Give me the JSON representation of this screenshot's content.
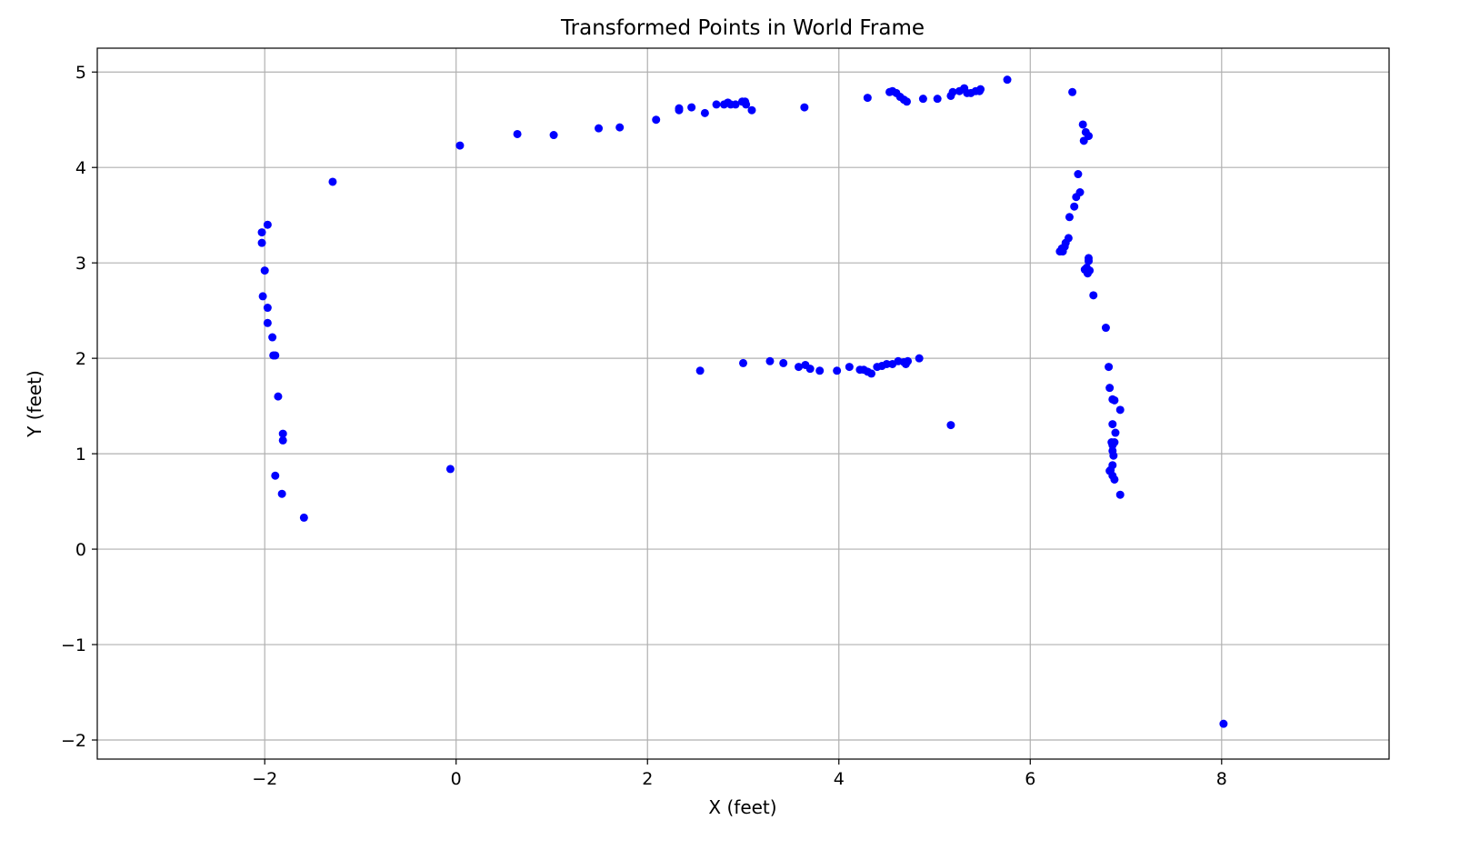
{
  "chart_data": {
    "type": "scatter",
    "title": "Transformed Points in World Frame",
    "xlabel": "X (feet)",
    "ylabel": "Y (feet)",
    "xlim": [
      -3.75,
      9.75
    ],
    "ylim": [
      -2.2,
      5.25
    ],
    "xticks": [
      -2,
      0,
      2,
      4,
      6,
      8
    ],
    "yticks": [
      -2,
      -1,
      0,
      1,
      2,
      3,
      4,
      5
    ],
    "xtick_labels": [
      "−2",
      "0",
      "2",
      "4",
      "6",
      "8"
    ],
    "ytick_labels": [
      "−2",
      "−1",
      "0",
      "1",
      "2",
      "3",
      "4",
      "5"
    ],
    "grid": true,
    "marker_color": "#0000ff",
    "points": [
      [
        -2.03,
        3.32
      ],
      [
        -2.03,
        3.21
      ],
      [
        -1.97,
        3.4
      ],
      [
        -2.0,
        2.92
      ],
      [
        -2.02,
        2.65
      ],
      [
        -1.97,
        2.53
      ],
      [
        -1.97,
        2.37
      ],
      [
        -1.92,
        2.22
      ],
      [
        -1.91,
        2.03
      ],
      [
        -1.89,
        2.03
      ],
      [
        -1.86,
        1.6
      ],
      [
        -1.81,
        1.21
      ],
      [
        -1.81,
        1.14
      ],
      [
        -1.89,
        0.77
      ],
      [
        -1.82,
        0.58
      ],
      [
        -1.59,
        0.33
      ],
      [
        -1.29,
        3.85
      ],
      [
        -0.06,
        0.84
      ],
      [
        0.04,
        4.23
      ],
      [
        0.64,
        4.35
      ],
      [
        1.02,
        4.34
      ],
      [
        1.49,
        4.41
      ],
      [
        1.71,
        4.42
      ],
      [
        2.09,
        4.5
      ],
      [
        2.33,
        4.62
      ],
      [
        2.33,
        4.6
      ],
      [
        2.46,
        4.63
      ],
      [
        2.6,
        4.57
      ],
      [
        2.72,
        4.66
      ],
      [
        2.8,
        4.66
      ],
      [
        2.84,
        4.68
      ],
      [
        2.87,
        4.66
      ],
      [
        2.92,
        4.66
      ],
      [
        2.99,
        4.69
      ],
      [
        3.02,
        4.69
      ],
      [
        3.03,
        4.66
      ],
      [
        3.09,
        4.6
      ],
      [
        3.64,
        4.63
      ],
      [
        4.3,
        4.73
      ],
      [
        4.53,
        4.79
      ],
      [
        4.56,
        4.8
      ],
      [
        4.6,
        4.78
      ],
      [
        4.64,
        4.74
      ],
      [
        4.68,
        4.71
      ],
      [
        4.71,
        4.69
      ],
      [
        4.88,
        4.72
      ],
      [
        5.03,
        4.72
      ],
      [
        5.17,
        4.75
      ],
      [
        5.19,
        4.79
      ],
      [
        5.26,
        4.8
      ],
      [
        5.31,
        4.83
      ],
      [
        5.34,
        4.78
      ],
      [
        5.38,
        4.78
      ],
      [
        5.43,
        4.8
      ],
      [
        5.47,
        4.8
      ],
      [
        5.48,
        4.82
      ],
      [
        5.76,
        4.92
      ],
      [
        6.44,
        4.79
      ],
      [
        6.55,
        4.45
      ],
      [
        6.58,
        4.37
      ],
      [
        6.61,
        4.33
      ],
      [
        6.56,
        4.28
      ],
      [
        6.5,
        3.93
      ],
      [
        6.52,
        3.74
      ],
      [
        6.48,
        3.69
      ],
      [
        6.46,
        3.59
      ],
      [
        6.41,
        3.48
      ],
      [
        6.4,
        3.26
      ],
      [
        6.37,
        3.21
      ],
      [
        6.36,
        3.17
      ],
      [
        6.33,
        3.15
      ],
      [
        6.31,
        3.12
      ],
      [
        6.34,
        3.12
      ],
      [
        6.61,
        3.05
      ],
      [
        6.61,
        3.02
      ],
      [
        6.59,
        2.95
      ],
      [
        6.57,
        2.93
      ],
      [
        6.62,
        2.92
      ],
      [
        6.6,
        2.89
      ],
      [
        6.66,
        2.66
      ],
      [
        6.79,
        2.32
      ],
      [
        6.82,
        1.91
      ],
      [
        6.83,
        1.69
      ],
      [
        6.86,
        1.57
      ],
      [
        6.88,
        1.56
      ],
      [
        6.94,
        1.46
      ],
      [
        6.86,
        1.31
      ],
      [
        6.89,
        1.22
      ],
      [
        6.85,
        1.12
      ],
      [
        6.88,
        1.12
      ],
      [
        6.86,
        1.09
      ],
      [
        6.86,
        1.03
      ],
      [
        6.87,
        0.98
      ],
      [
        6.86,
        0.88
      ],
      [
        6.84,
        0.83
      ],
      [
        6.83,
        0.82
      ],
      [
        6.86,
        0.77
      ],
      [
        6.88,
        0.73
      ],
      [
        6.94,
        0.57
      ],
      [
        8.02,
        -1.83
      ],
      [
        2.55,
        1.87
      ],
      [
        3.0,
        1.95
      ],
      [
        3.28,
        1.97
      ],
      [
        3.42,
        1.95
      ],
      [
        3.58,
        1.91
      ],
      [
        3.65,
        1.93
      ],
      [
        3.7,
        1.89
      ],
      [
        3.8,
        1.87
      ],
      [
        3.98,
        1.87
      ],
      [
        4.11,
        1.91
      ],
      [
        4.22,
        1.88
      ],
      [
        4.26,
        1.88
      ],
      [
        4.3,
        1.86
      ],
      [
        4.34,
        1.84
      ],
      [
        4.4,
        1.91
      ],
      [
        4.45,
        1.92
      ],
      [
        4.5,
        1.94
      ],
      [
        4.56,
        1.94
      ],
      [
        4.62,
        1.97
      ],
      [
        4.68,
        1.96
      ],
      [
        4.7,
        1.94
      ],
      [
        4.72,
        1.97
      ],
      [
        4.84,
        2.0
      ],
      [
        5.17,
        1.3
      ]
    ]
  }
}
